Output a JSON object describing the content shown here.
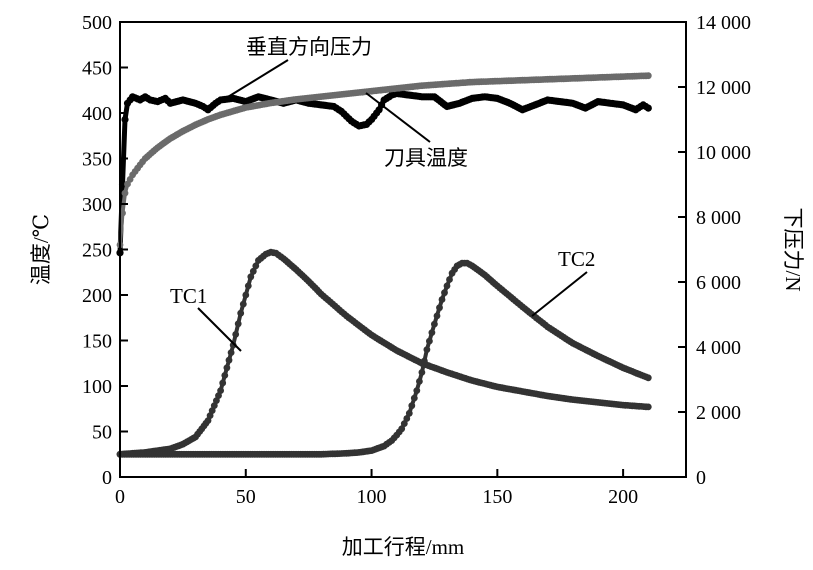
{
  "chart_data": {
    "type": "line",
    "xlabel": "加工行程/mm",
    "ylabel_left": "温度/℃",
    "ylabel_right": "下压力/N",
    "xlim": [
      0,
      225
    ],
    "ylim_left": [
      0,
      500
    ],
    "ylim_right": [
      0,
      14000
    ],
    "x_ticks": [
      0,
      50,
      100,
      150,
      200
    ],
    "y_ticks_left": [
      0,
      50,
      100,
      150,
      200,
      250,
      300,
      350,
      400,
      450,
      500
    ],
    "y_ticks_right": [
      0,
      2000,
      4000,
      6000,
      8000,
      10000,
      12000,
      14000
    ],
    "x_tick_labels": [
      "0",
      "50",
      "100",
      "150",
      "200"
    ],
    "y_tick_labels_left": [
      "0",
      "50",
      "100",
      "150",
      "200",
      "250",
      "300",
      "350",
      "400",
      "450",
      "500"
    ],
    "y_tick_labels_right": [
      "0",
      "2 000",
      "4 000",
      "6 000",
      "8 000",
      "10 000",
      "12 000",
      "14 000"
    ],
    "grid": false,
    "annotations": [
      {
        "text": "垂直方向压力",
        "series": "force"
      },
      {
        "text": "刀具温度",
        "series": "tool"
      },
      {
        "text": "TC1",
        "series": "tc1"
      },
      {
        "text": "TC2",
        "series": "tc2"
      }
    ],
    "series": [
      {
        "key": "force",
        "axis": "right",
        "color": "#000000",
        "x": [
          0,
          1,
          2,
          3,
          5,
          8,
          10,
          12,
          15,
          18,
          20,
          25,
          30,
          33,
          35,
          38,
          40,
          45,
          50,
          55,
          60,
          65,
          70,
          75,
          80,
          85,
          88,
          90,
          92,
          95,
          98,
          100,
          103,
          105,
          108,
          110,
          115,
          120,
          125,
          130,
          135,
          140,
          145,
          150,
          155,
          160,
          165,
          170,
          175,
          180,
          185,
          190,
          195,
          200,
          205,
          208,
          210
        ],
        "y": [
          6900,
          9000,
          11000,
          11500,
          11700,
          11600,
          11700,
          11600,
          11550,
          11650,
          11500,
          11600,
          11500,
          11400,
          11300,
          11500,
          11600,
          11650,
          11550,
          11700,
          11600,
          11500,
          11600,
          11500,
          11450,
          11400,
          11250,
          11100,
          10950,
          10800,
          10850,
          11000,
          11300,
          11600,
          11750,
          11800,
          11750,
          11700,
          11700,
          11400,
          11500,
          11650,
          11700,
          11650,
          11500,
          11300,
          11450,
          11600,
          11550,
          11500,
          11350,
          11550,
          11500,
          11450,
          11300,
          11450,
          11350
        ]
      },
      {
        "key": "tool",
        "axis": "left",
        "color": "#6b6b6b",
        "x": [
          0,
          1,
          2,
          3,
          5,
          8,
          10,
          15,
          20,
          25,
          30,
          35,
          40,
          50,
          60,
          70,
          80,
          90,
          100,
          110,
          120,
          130,
          140,
          150,
          160,
          170,
          180,
          190,
          200,
          210
        ],
        "y": [
          255,
          290,
          312,
          322,
          332,
          343,
          350,
          362,
          372,
          380,
          387,
          393,
          398,
          406,
          411,
          415,
          418,
          421,
          424,
          427,
          430,
          432,
          434,
          435,
          436,
          437,
          438,
          439,
          440,
          441
        ]
      },
      {
        "key": "tc1",
        "axis": "left",
        "color": "#333333",
        "x": [
          0,
          5,
          10,
          15,
          20,
          25,
          30,
          35,
          40,
          45,
          48,
          50,
          52,
          55,
          58,
          60,
          62,
          65,
          70,
          75,
          80,
          90,
          100,
          110,
          120,
          130,
          140,
          150,
          160,
          170,
          180,
          190,
          200,
          210
        ],
        "y": [
          25,
          26,
          27,
          29,
          31,
          36,
          44,
          62,
          95,
          145,
          180,
          200,
          220,
          238,
          245,
          247,
          246,
          240,
          228,
          215,
          201,
          177,
          156,
          139,
          125,
          115,
          106,
          99,
          94,
          89,
          85,
          82,
          79,
          77
        ]
      },
      {
        "key": "tc2",
        "axis": "left",
        "color": "#333333",
        "x": [
          0,
          20,
          40,
          60,
          80,
          90,
          95,
          100,
          105,
          108,
          110,
          112,
          115,
          118,
          120,
          122,
          125,
          128,
          130,
          132,
          134,
          136,
          138,
          140,
          145,
          150,
          160,
          170,
          180,
          190,
          200,
          210
        ],
        "y": [
          25,
          25,
          25,
          25,
          25,
          26,
          27,
          29,
          34,
          40,
          46,
          53,
          70,
          95,
          115,
          140,
          168,
          195,
          210,
          224,
          232,
          235,
          235,
          232,
          222,
          210,
          187,
          165,
          147,
          133,
          120,
          109
        ]
      }
    ]
  }
}
